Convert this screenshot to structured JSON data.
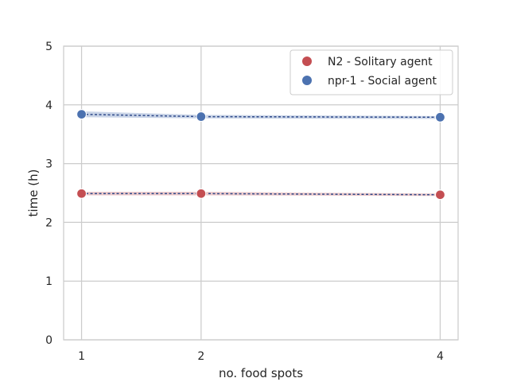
{
  "chart_data": {
    "type": "line",
    "xlabel": "no. food spots",
    "ylabel": "time (h)",
    "x": [
      1,
      2,
      4
    ],
    "x_ticks": [
      "1",
      "2",
      "4"
    ],
    "y_ticks": [
      "0",
      "1",
      "2",
      "3",
      "4",
      "5"
    ],
    "xlim": [
      0.85,
      4.15
    ],
    "ylim": [
      0,
      5
    ],
    "grid": true,
    "legend_position": "top-right",
    "series": [
      {
        "name": "N2 - Solitary agent",
        "color": "#c44e52",
        "values": [
          2.49,
          2.49,
          2.47
        ],
        "ci_low": [
          2.46,
          2.46,
          2.45
        ],
        "ci_high": [
          2.52,
          2.52,
          2.49
        ]
      },
      {
        "name": "npr-1 - Social agent",
        "color": "#4c72b0",
        "values": [
          3.84,
          3.8,
          3.79
        ],
        "ci_low": [
          3.79,
          3.77,
          3.76
        ],
        "ci_high": [
          3.89,
          3.83,
          3.81
        ]
      }
    ]
  }
}
